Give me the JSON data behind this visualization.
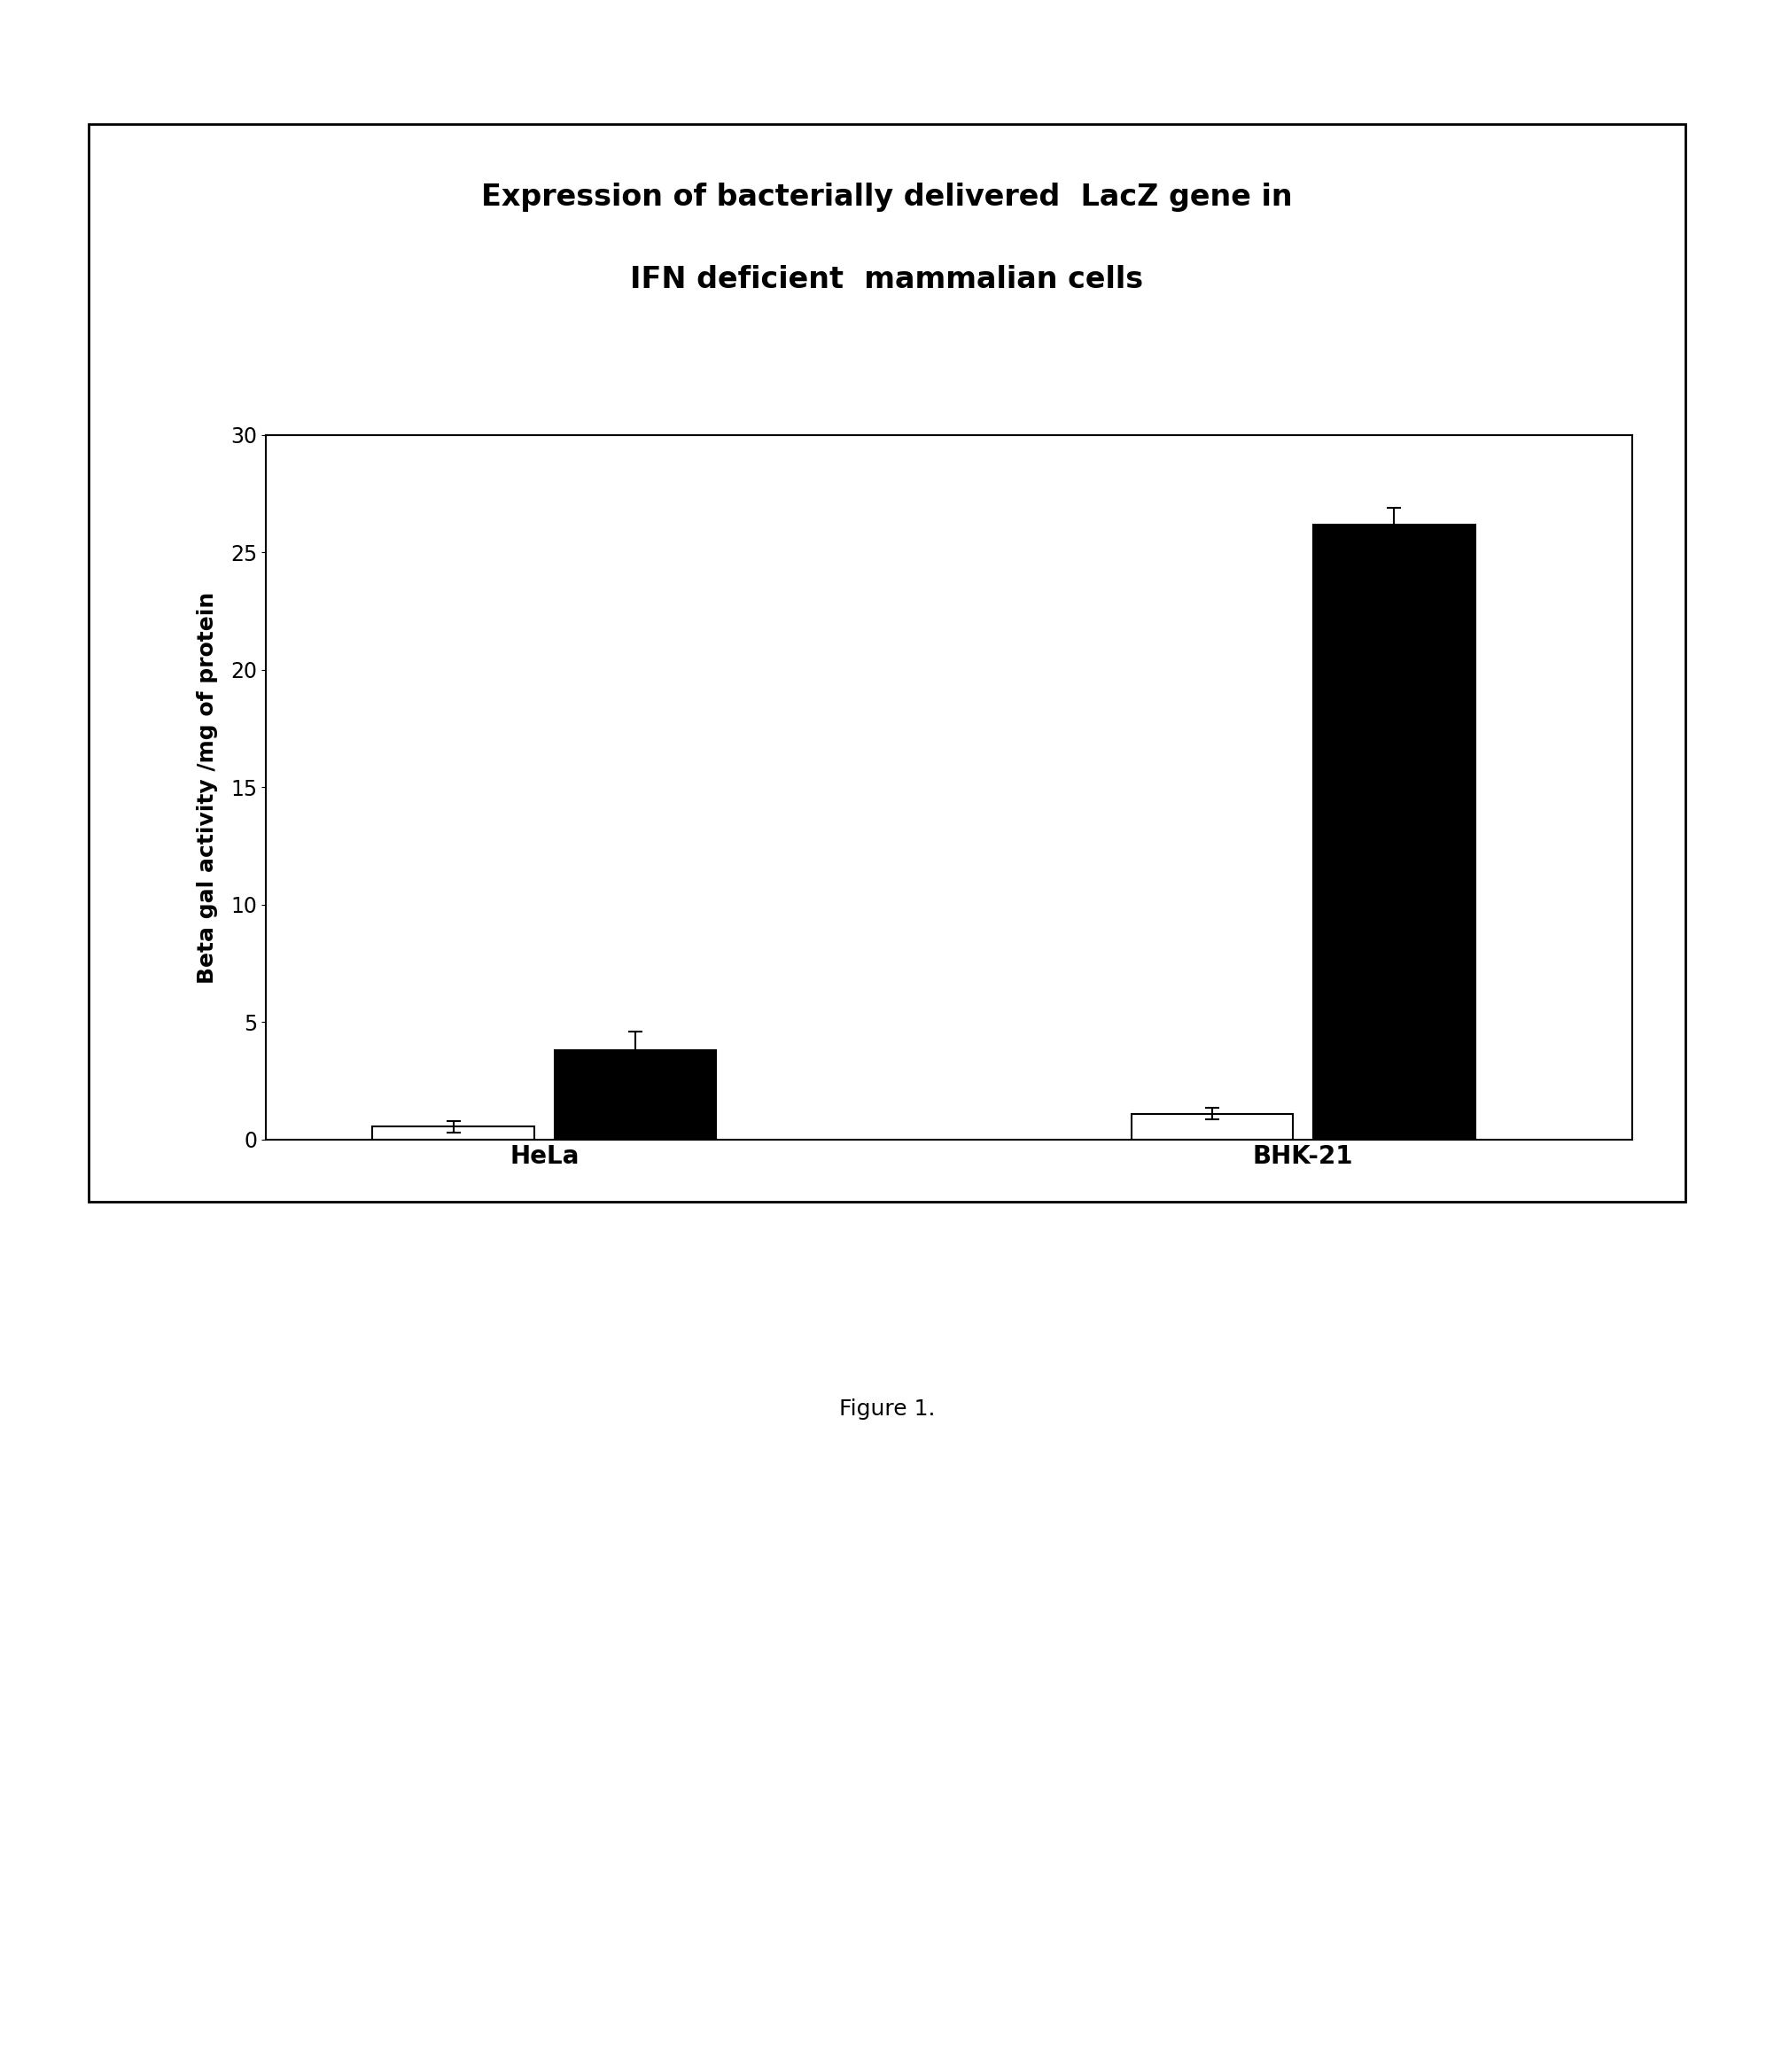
{
  "title_line1": "Expression of bacterially delivered  LacZ gene in",
  "title_line2": "IFN deficient  mammalian cells",
  "ylabel": "Beta gal activity /mg of protein",
  "categories": [
    "HeLa",
    "BHK-21"
  ],
  "white_bars": [
    0.55,
    1.1
  ],
  "black_bars": [
    3.8,
    26.2
  ],
  "white_errors": [
    0.25,
    0.25
  ],
  "black_errors": [
    0.8,
    0.7
  ],
  "ylim": [
    0,
    30
  ],
  "yticks": [
    0,
    5,
    10,
    15,
    20,
    25,
    30
  ],
  "bar_width": 0.32,
  "white_color": "#ffffff",
  "black_color": "#000000",
  "caption": "Figure 1.",
  "background_color": "#ffffff",
  "title_fontsize": 24,
  "axis_fontsize": 18,
  "tick_fontsize": 17,
  "caption_fontsize": 18
}
